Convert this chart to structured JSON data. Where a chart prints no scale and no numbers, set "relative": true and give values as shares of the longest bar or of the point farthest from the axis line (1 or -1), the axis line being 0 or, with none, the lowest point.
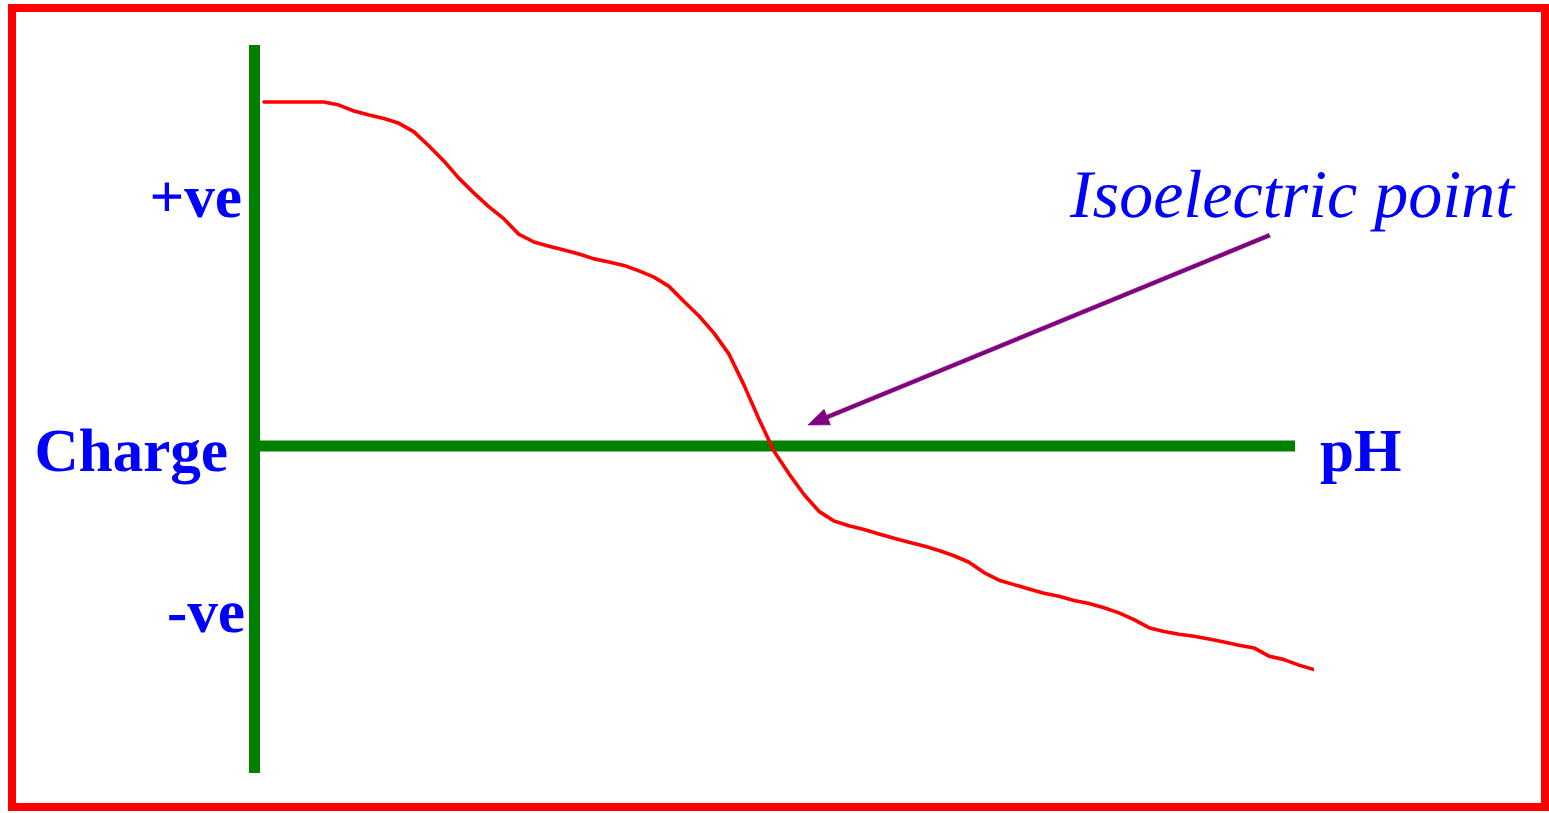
{
  "chart_data": {
    "type": "line",
    "relative": true,
    "xlabel": "pH",
    "ylabel": "Charge",
    "annotations": [
      "+ve",
      "-ve",
      "Isoelectric point"
    ],
    "ref_lines": [
      {
        "axis": "y",
        "value": 0,
        "color": "#008000"
      }
    ],
    "categories": [
      null,
      null,
      null,
      null,
      null,
      null,
      null,
      null,
      null,
      null,
      null,
      null,
      null,
      null,
      null,
      null,
      null,
      null,
      null,
      null,
      null,
      null,
      null,
      null,
      null,
      null,
      null,
      null,
      null,
      null,
      null,
      null,
      null,
      null,
      null,
      null,
      null,
      null,
      null,
      null,
      null,
      null,
      null,
      null,
      null,
      null,
      null,
      null,
      null,
      null,
      null,
      null,
      null,
      null,
      null,
      null,
      null,
      null,
      null,
      null,
      null,
      null,
      null,
      null,
      null,
      null,
      null,
      null,
      null,
      null,
      null
    ],
    "series": [
      {
        "color": "#ff0000",
        "values": [
          1,
          1,
          1,
          1,
          1,
          0.991,
          0.974,
          0.962,
          0.952,
          0.938,
          0.913,
          0.872,
          0.828,
          0.778,
          0.735,
          0.695,
          0.66,
          0.615,
          0.593,
          0.581,
          0.57,
          0.558,
          0.544,
          0.535,
          0.525,
          0.509,
          0.491,
          0.464,
          0.42,
          0.378,
          0.328,
          0.267,
          0.177,
          0.078,
          -0.015,
          -0.081,
          -0.141,
          -0.19,
          -0.218,
          -0.232,
          -0.243,
          -0.256,
          -0.268,
          -0.28,
          -0.291,
          -0.304,
          -0.319,
          -0.338,
          -0.368,
          -0.39,
          -0.403,
          -0.416,
          -0.428,
          -0.437,
          -0.449,
          -0.458,
          -0.47,
          -0.485,
          -0.505,
          -0.528,
          -0.539,
          -0.547,
          -0.553,
          -0.561,
          -0.57,
          -0.579,
          -0.587,
          -0.611,
          -0.621,
          -0.637,
          -0.65
        ]
      }
    ]
  }
}
